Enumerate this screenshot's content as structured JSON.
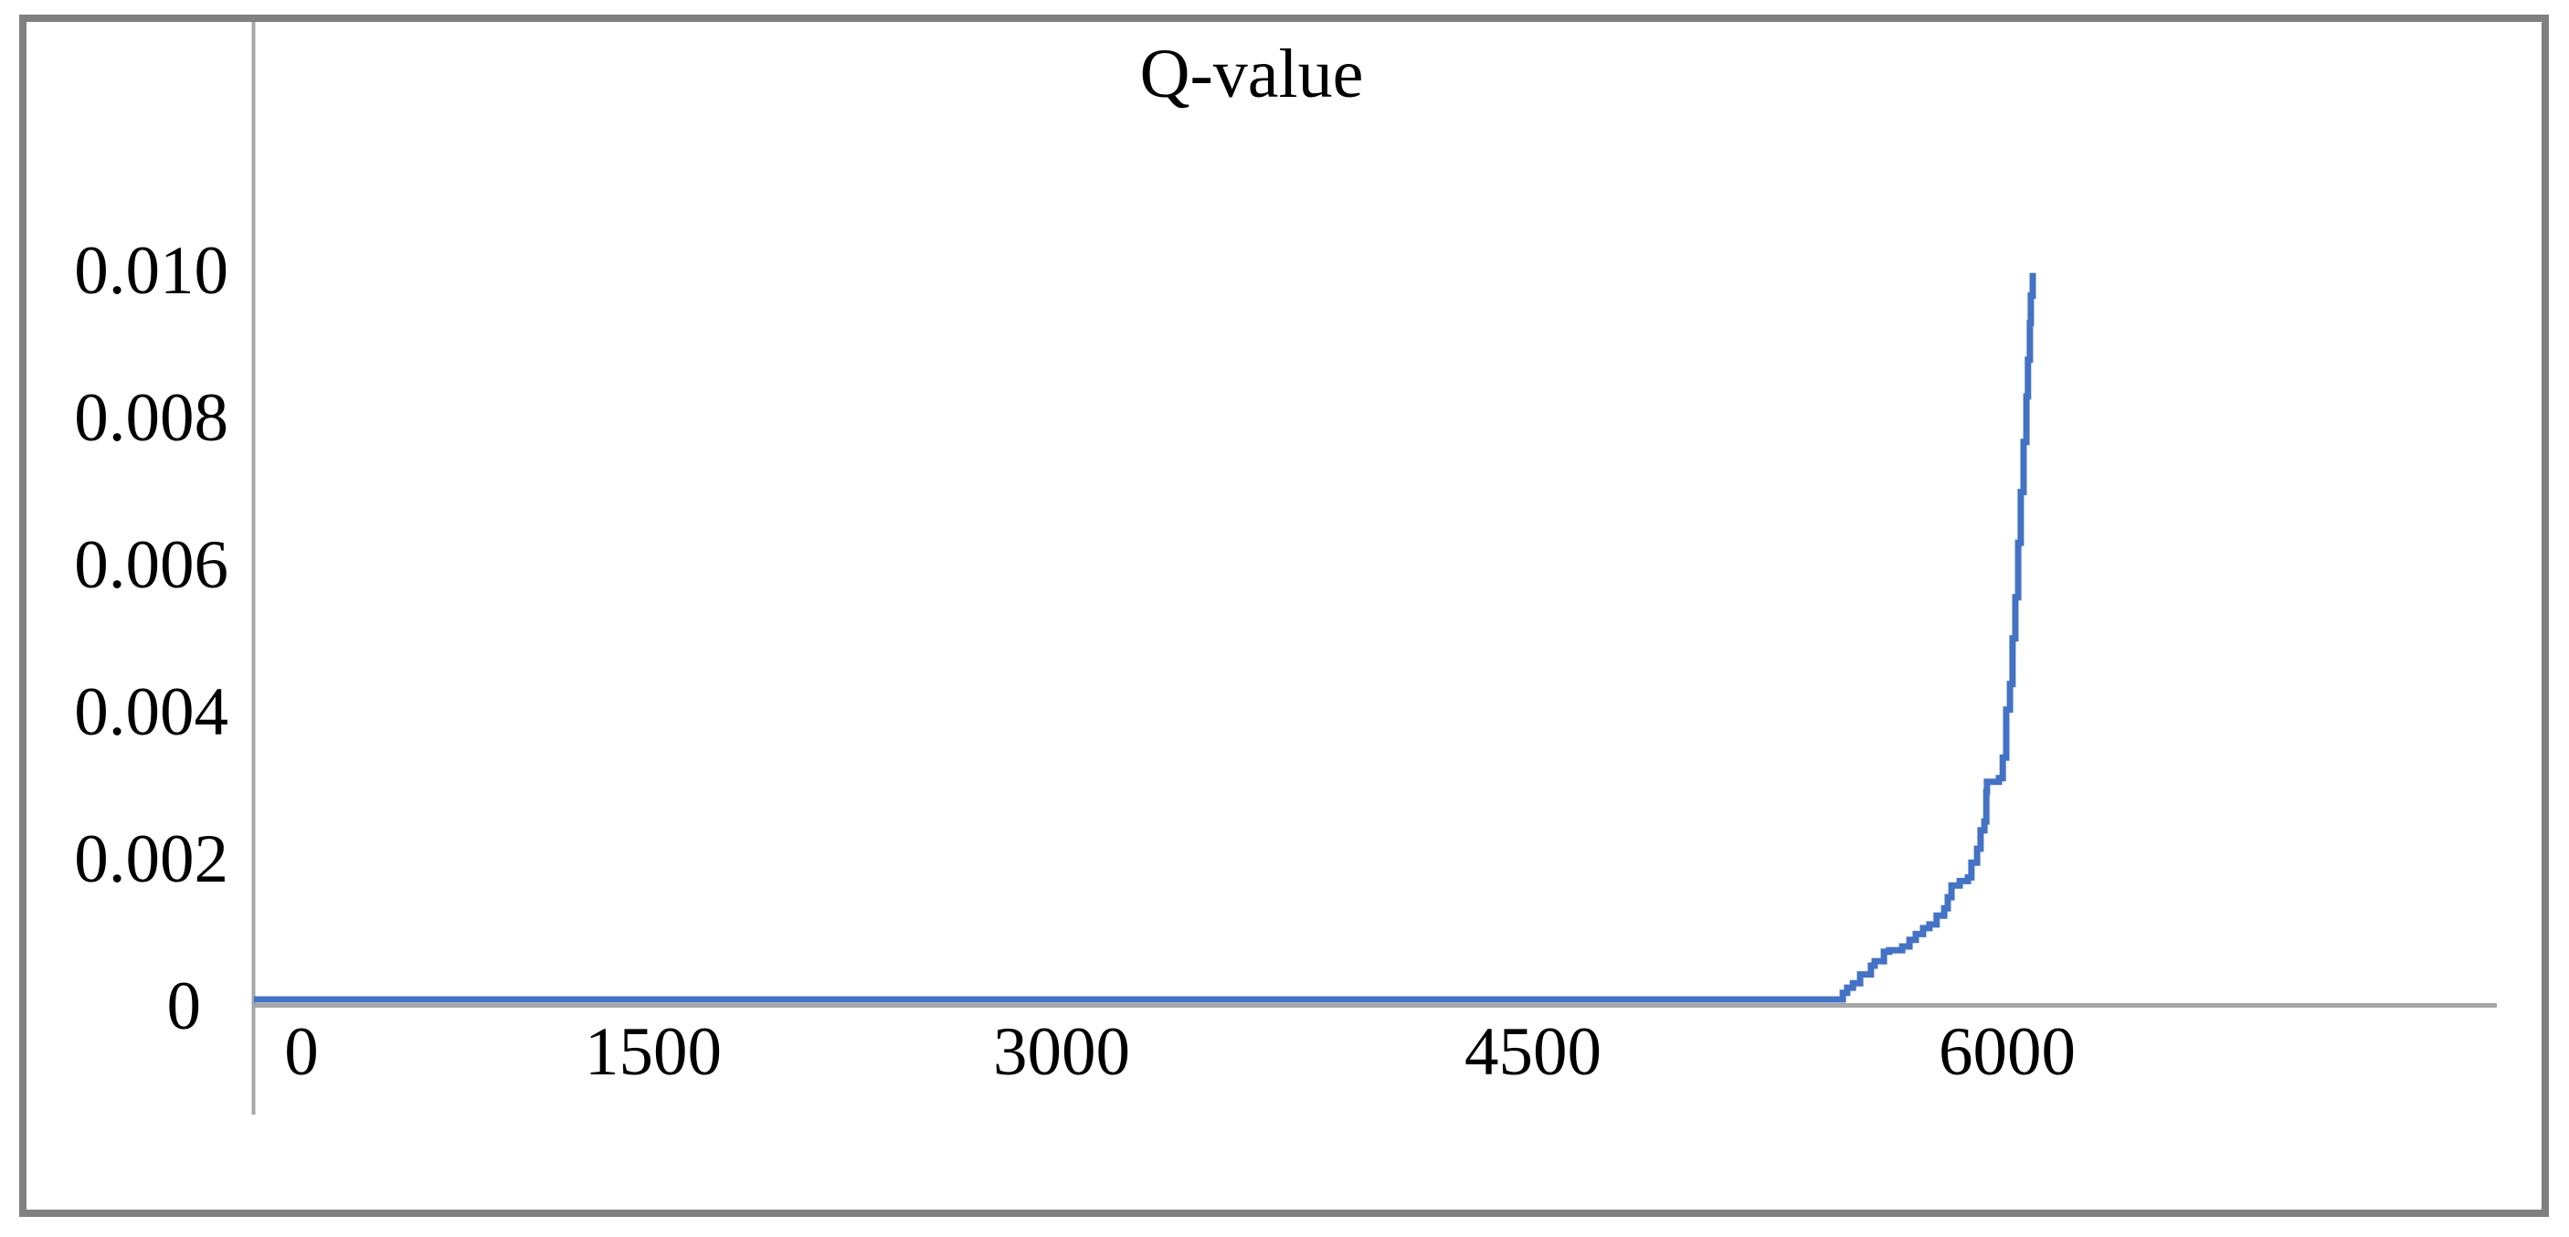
{
  "chart": {
    "title": "Q-value"
  },
  "colors": {
    "series_line": "#4472C4",
    "axis_line": "#A6A6A6",
    "frame_border": "#808080",
    "background": "#FFFFFF",
    "text": "#000000"
  },
  "chart_data": {
    "type": "line",
    "title": "Q-value",
    "xlabel": "",
    "ylabel": "",
    "x_tick_labels": [
      "0",
      "1500",
      "3000",
      "4500",
      "6000"
    ],
    "y_tick_labels": [
      "0",
      "0.002",
      "0.004",
      "0.006",
      "0.008",
      "0.010"
    ],
    "xlim": [
      0,
      7550
    ],
    "ylim": [
      0,
      0.0112
    ],
    "grid": "off",
    "legend_position": "none",
    "series": [
      {
        "name": "Q-value",
        "color": "#4472C4",
        "interpolation": "step-after",
        "points": [
          [
            0,
            0
          ],
          [
            5480,
            9e-05
          ],
          [
            5494,
            0.00016
          ],
          [
            5512,
            0.00022
          ],
          [
            5535,
            0.00034
          ],
          [
            5569,
            0.00046
          ],
          [
            5581,
            0.00052
          ],
          [
            5610,
            0.00065
          ],
          [
            5627,
            0.00067
          ],
          [
            5668,
            0.00072
          ],
          [
            5691,
            0.00081
          ],
          [
            5711,
            0.00089
          ],
          [
            5734,
            0.00097
          ],
          [
            5754,
            0.00102
          ],
          [
            5777,
            0.00114
          ],
          [
            5801,
            0.00124
          ],
          [
            5812,
            0.00139
          ],
          [
            5824,
            0.00155
          ],
          [
            5850,
            0.00161
          ],
          [
            5876,
            0.00166
          ],
          [
            5887,
            0.00186
          ],
          [
            5905,
            0.00205
          ],
          [
            5916,
            0.0023
          ],
          [
            5928,
            0.00242
          ],
          [
            5934,
            0.00282
          ],
          [
            5936,
            0.00296
          ],
          [
            5974,
            0.00301
          ],
          [
            5986,
            0.00329
          ],
          [
            5997,
            0.00394
          ],
          [
            6009,
            0.00429
          ],
          [
            6017,
            0.00491
          ],
          [
            6026,
            0.00547
          ],
          [
            6035,
            0.00621
          ],
          [
            6043,
            0.0069
          ],
          [
            6052,
            0.00758
          ],
          [
            6061,
            0.0082
          ],
          [
            6066,
            0.0087
          ],
          [
            6072,
            0.0092
          ],
          [
            6075,
            0.00957
          ],
          [
            6081,
            0.00988
          ]
        ]
      }
    ]
  }
}
